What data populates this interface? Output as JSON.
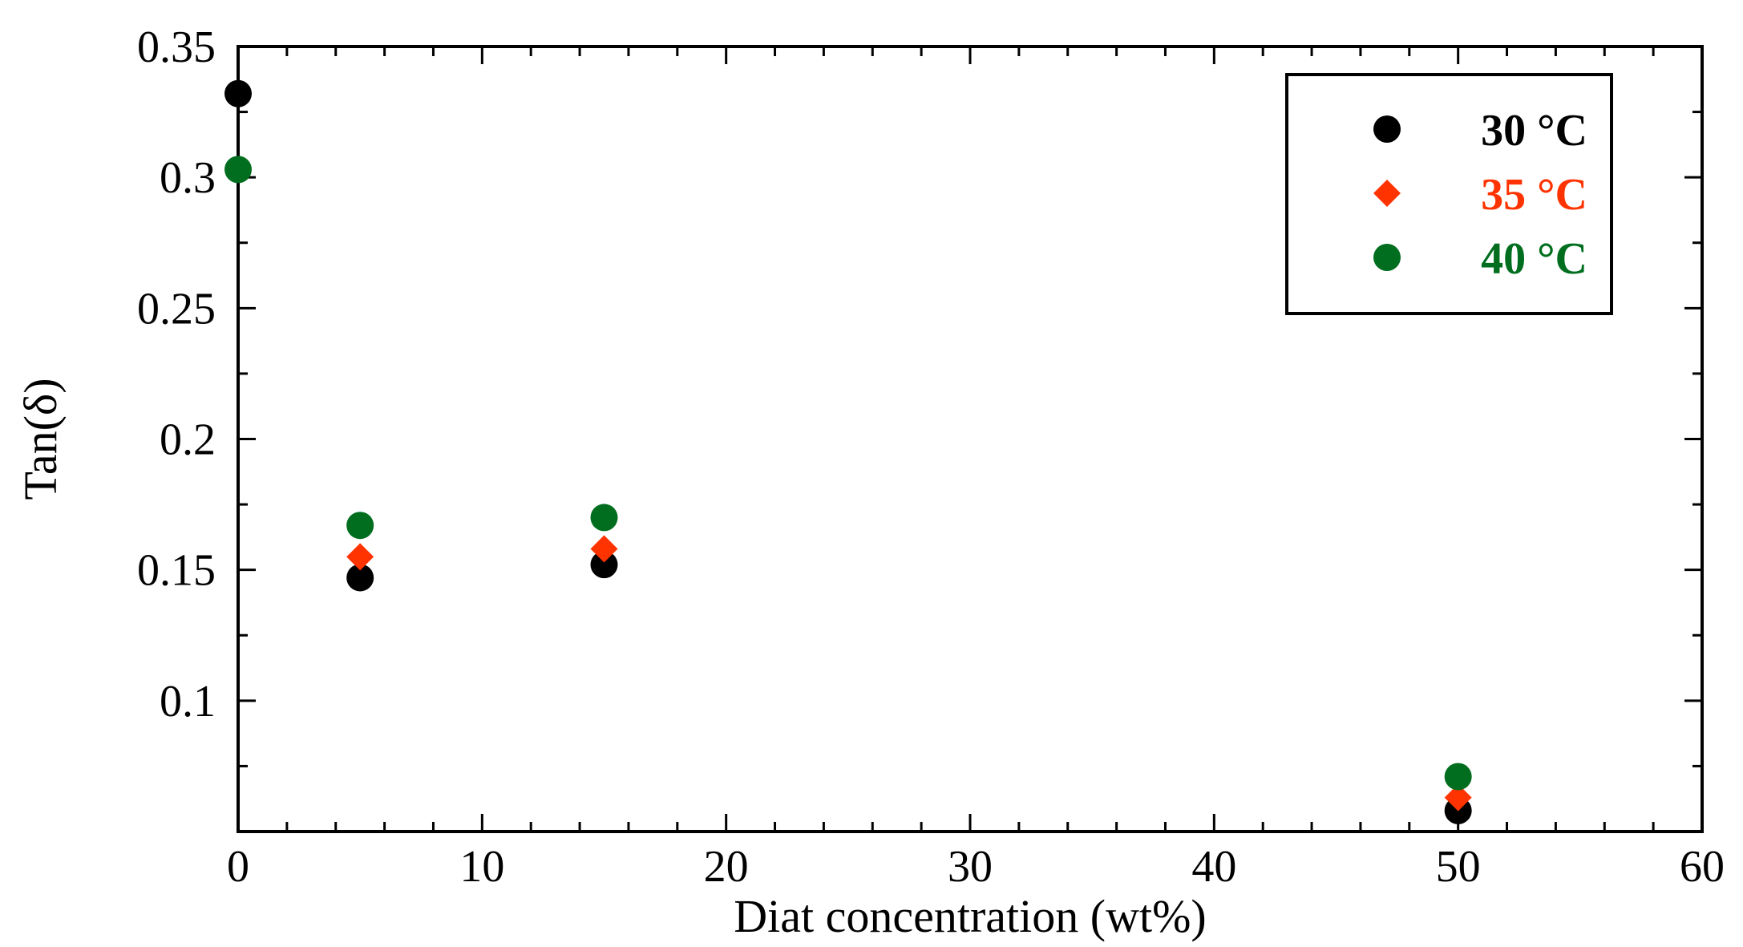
{
  "chart_data": {
    "type": "scatter",
    "title": "",
    "xlabel": "Diat concentration (wt%)",
    "ylabel": "Tan(δ)",
    "xlim": [
      0,
      60
    ],
    "ylim": [
      0.05,
      0.35
    ],
    "x_ticks": [
      0,
      10,
      20,
      30,
      40,
      50,
      60
    ],
    "x_tick_labels": [
      "0",
      "10",
      "20",
      "30",
      "40",
      "50",
      "60"
    ],
    "y_ticks": [
      0.1,
      0.15,
      0.2,
      0.25,
      0.3,
      0.35
    ],
    "y_tick_labels": [
      "0.1",
      "0.15",
      "0.2",
      "0.25",
      "0.3",
      "0.35"
    ],
    "grid": false,
    "legend": "top-right",
    "series": [
      {
        "name": "30 °C",
        "marker": "circle",
        "color": "#000000",
        "x": [
          0,
          5,
          15,
          50
        ],
        "y": [
          0.332,
          0.147,
          0.152,
          0.058
        ]
      },
      {
        "name": "35 °C",
        "marker": "diamond",
        "color": "#ff3300",
        "x": [
          5,
          15,
          50
        ],
        "y": [
          0.155,
          0.158,
          0.063
        ]
      },
      {
        "name": "40 °C",
        "marker": "circle",
        "color": "#006e1e",
        "x": [
          0,
          5,
          15,
          50
        ],
        "y": [
          0.303,
          0.167,
          0.17,
          0.071
        ]
      }
    ]
  }
}
